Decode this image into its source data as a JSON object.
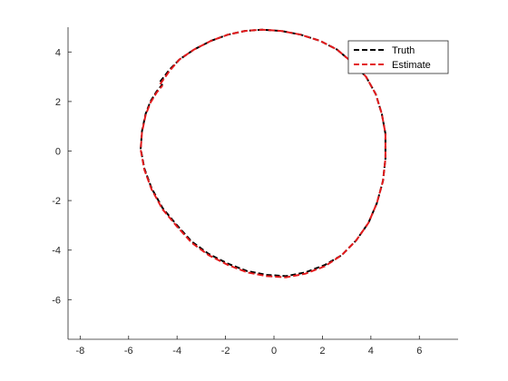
{
  "chart_data": {
    "type": "line",
    "title": "",
    "xlabel": "",
    "ylabel": "",
    "xlim": [
      -8.5,
      7.6
    ],
    "ylim": [
      -7.6,
      5.0
    ],
    "xticks": [
      -8,
      -6,
      -4,
      -2,
      0,
      2,
      4,
      6
    ],
    "yticks": [
      -6,
      -4,
      -2,
      0,
      2,
      4
    ],
    "xtick_labels": [
      "-8",
      "-6",
      "-4",
      "-2",
      "0",
      "2",
      "4",
      "6"
    ],
    "ytick_labels": [
      "-6",
      "-4",
      "-2",
      "0",
      "2",
      "4"
    ],
    "grid": false,
    "box": "left-bottom axes only",
    "legend_position": "top-right",
    "series": [
      {
        "name": "Truth",
        "color": "#000000",
        "style": "dashed",
        "x": [
          -4.7,
          -4.3,
          -3.9,
          -3.3,
          -2.6,
          -1.9,
          -1.2,
          -0.5,
          0.3,
          1.1,
          1.9,
          2.6,
          3.2,
          3.8,
          4.2,
          4.45,
          4.6,
          4.6,
          4.5,
          4.25,
          3.9,
          3.4,
          2.8,
          2.1,
          1.3,
          0.5,
          -0.3,
          -1.1,
          -1.9,
          -2.7,
          -3.4,
          -4.0,
          -4.6,
          -5.05,
          -5.35,
          -5.5,
          -5.45,
          -5.3,
          -5.1,
          -4.85,
          -4.6
        ],
        "y": [
          2.8,
          3.3,
          3.7,
          4.1,
          4.45,
          4.7,
          4.85,
          4.9,
          4.85,
          4.7,
          4.45,
          4.1,
          3.6,
          3.0,
          2.3,
          1.5,
          0.7,
          -0.3,
          -1.2,
          -2.1,
          -2.9,
          -3.6,
          -4.2,
          -4.6,
          -4.9,
          -5.05,
          -5.0,
          -4.85,
          -4.55,
          -4.15,
          -3.65,
          -3.0,
          -2.3,
          -1.5,
          -0.7,
          0.1,
          0.8,
          1.5,
          2.0,
          2.4,
          2.7
        ]
      },
      {
        "name": "Estimate",
        "color": "#e31a1c",
        "style": "dashed",
        "x": [
          -4.7,
          -4.3,
          -3.9,
          -3.3,
          -2.6,
          -1.9,
          -1.2,
          -0.5,
          0.3,
          1.1,
          1.9,
          2.6,
          3.2,
          3.8,
          4.2,
          4.45,
          4.6,
          4.6,
          4.5,
          4.25,
          3.9,
          3.4,
          2.8,
          2.1,
          1.3,
          0.5,
          -0.3,
          -1.1,
          -1.9,
          -2.7,
          -3.4,
          -4.0,
          -4.6,
          -5.05,
          -5.35,
          -5.5,
          -5.45,
          -5.3,
          -5.1,
          -4.85,
          -4.6
        ],
        "y": [
          2.7,
          3.25,
          3.7,
          4.1,
          4.45,
          4.7,
          4.85,
          4.9,
          4.85,
          4.7,
          4.45,
          4.1,
          3.6,
          3.0,
          2.3,
          1.5,
          0.7,
          -0.3,
          -1.2,
          -2.1,
          -2.9,
          -3.6,
          -4.2,
          -4.65,
          -4.95,
          -5.1,
          -5.05,
          -4.9,
          -4.6,
          -4.2,
          -3.7,
          -3.05,
          -2.35,
          -1.55,
          -0.75,
          0.05,
          0.75,
          1.45,
          1.95,
          2.35,
          2.65
        ]
      }
    ]
  }
}
